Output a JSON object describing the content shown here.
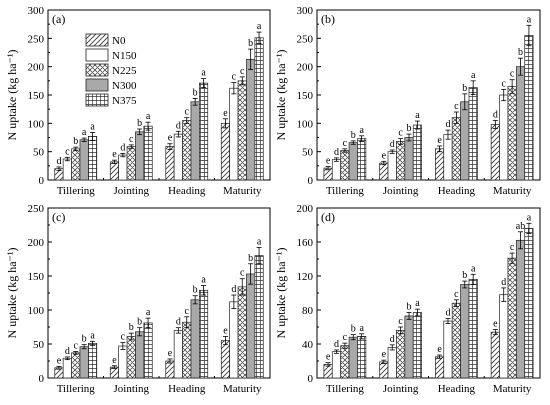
{
  "legend": [
    "N0",
    "N150",
    "N225",
    "N300",
    "N375"
  ],
  "chart_data": [
    {
      "type": "bar",
      "panel_label": "(a)",
      "ylabel": "N uptake (kg ha⁻¹)",
      "ylim": [
        0,
        300
      ],
      "yticks": [
        0,
        50,
        100,
        150,
        200,
        250,
        300
      ],
      "categories": [
        "Tillering",
        "Jointing",
        "Heading",
        "Maturity"
      ],
      "series": [
        {
          "name": "N0",
          "values": [
            20,
            32,
            59,
            100
          ],
          "errors": [
            3,
            3,
            5,
            8
          ],
          "letters": [
            "d",
            "e",
            "e",
            "e"
          ]
        },
        {
          "name": "N150",
          "values": [
            37,
            44,
            81,
            162
          ],
          "errors": [
            3,
            3,
            5,
            10
          ],
          "letters": [
            "c",
            "d",
            "d",
            "c"
          ]
        },
        {
          "name": "N225",
          "values": [
            55,
            59,
            105,
            175
          ],
          "errors": [
            3,
            3,
            5,
            7
          ],
          "letters": [
            "b",
            "c",
            "c",
            "c"
          ]
        },
        {
          "name": "N300",
          "values": [
            71,
            85,
            138,
            213
          ],
          "errors": [
            3,
            5,
            6,
            18
          ],
          "letters": [
            "a",
            "b",
            "b",
            "b"
          ]
        },
        {
          "name": "N375",
          "values": [
            77,
            95,
            171,
            251
          ],
          "errors": [
            7,
            7,
            8,
            10
          ],
          "letters": [
            "a",
            "a",
            "a",
            "a"
          ]
        }
      ]
    },
    {
      "type": "bar",
      "panel_label": "(b)",
      "ylabel": "N uptake (kg ha⁻¹)",
      "ylim": [
        0,
        300
      ],
      "yticks": [
        0,
        50,
        100,
        150,
        200,
        250,
        300
      ],
      "categories": [
        "Tillering",
        "Jointing",
        "Heading",
        "Maturity"
      ],
      "series": [
        {
          "name": "N0",
          "values": [
            21,
            30,
            55,
            98
          ],
          "errors": [
            3,
            3,
            5,
            7
          ],
          "letters": [
            "e",
            "e",
            "e",
            "d"
          ]
        },
        {
          "name": "N150",
          "values": [
            36,
            50,
            80,
            150
          ],
          "errors": [
            3,
            3,
            8,
            10
          ],
          "letters": [
            "d",
            "d",
            "d",
            "c"
          ]
        },
        {
          "name": "N225",
          "values": [
            52,
            68,
            110,
            165
          ],
          "errors": [
            3,
            5,
            10,
            12
          ],
          "letters": [
            "c",
            "c",
            "c",
            "c"
          ]
        },
        {
          "name": "N300",
          "values": [
            66,
            75,
            138,
            200
          ],
          "errors": [
            3,
            6,
            14,
            15
          ],
          "letters": [
            "b",
            "b",
            "b",
            "b"
          ]
        },
        {
          "name": "N375",
          "values": [
            73,
            97,
            163,
            255
          ],
          "errors": [
            5,
            7,
            12,
            18
          ],
          "letters": [
            "a",
            "a",
            "a",
            "a"
          ]
        }
      ]
    },
    {
      "type": "bar",
      "panel_label": "(c)",
      "ylabel": "N uptake (kg ha⁻¹)",
      "ylim": [
        0,
        250
      ],
      "yticks": [
        0,
        50,
        100,
        150,
        200,
        250
      ],
      "categories": [
        "Tillering",
        "Jointing",
        "Heading",
        "Maturity"
      ],
      "series": [
        {
          "name": "N0",
          "values": [
            15,
            16,
            25,
            55
          ],
          "errors": [
            2,
            2,
            3,
            6
          ],
          "letters": [
            "e",
            "e",
            "e",
            "e"
          ]
        },
        {
          "name": "N150",
          "values": [
            29,
            47,
            70,
            112
          ],
          "errors": [
            2,
            5,
            4,
            10
          ],
          "letters": [
            "d",
            "c",
            "d",
            "d"
          ]
        },
        {
          "name": "N225",
          "values": [
            37,
            61,
            82,
            134
          ],
          "errors": [
            2,
            5,
            8,
            12
          ],
          "letters": [
            "c",
            "b",
            "c",
            "c"
          ]
        },
        {
          "name": "N300",
          "values": [
            46,
            68,
            115,
            153
          ],
          "errors": [
            3,
            6,
            6,
            15
          ],
          "letters": [
            "b",
            "b",
            "b",
            "b"
          ]
        },
        {
          "name": "N375",
          "values": [
            51,
            81,
            129,
            180
          ],
          "errors": [
            3,
            7,
            7,
            12
          ],
          "letters": [
            "a",
            "a",
            "a",
            "a"
          ]
        }
      ]
    },
    {
      "type": "bar",
      "panel_label": "(d)",
      "ylabel": "N uptake (kg ha⁻¹)",
      "ylim": [
        0,
        200
      ],
      "yticks": [
        0,
        40,
        80,
        120,
        160,
        200
      ],
      "categories": [
        "Tillering",
        "Jointing",
        "Heading",
        "Maturity"
      ],
      "series": [
        {
          "name": "N0",
          "values": [
            16,
            19,
            25,
            54
          ],
          "errors": [
            2,
            2,
            2,
            3
          ],
          "letters": [
            "e",
            "e",
            "e",
            "e"
          ]
        },
        {
          "name": "N150",
          "values": [
            31,
            36,
            67,
            98
          ],
          "errors": [
            2,
            3,
            3,
            8
          ],
          "letters": [
            "d",
            "d",
            "d",
            "d"
          ]
        },
        {
          "name": "N225",
          "values": [
            38,
            56,
            88,
            141
          ],
          "errors": [
            3,
            4,
            4,
            6
          ],
          "letters": [
            "c",
            "c",
            "c",
            "c"
          ]
        },
        {
          "name": "N300",
          "values": [
            48,
            73,
            110,
            162
          ],
          "errors": [
            3,
            4,
            4,
            10
          ],
          "letters": [
            "b",
            "b",
            "b",
            "ab"
          ]
        },
        {
          "name": "N375",
          "values": [
            49,
            77,
            116,
            176
          ],
          "errors": [
            3,
            4,
            6,
            6
          ],
          "letters": [
            "a",
            "a",
            "a",
            "a"
          ]
        }
      ]
    }
  ]
}
